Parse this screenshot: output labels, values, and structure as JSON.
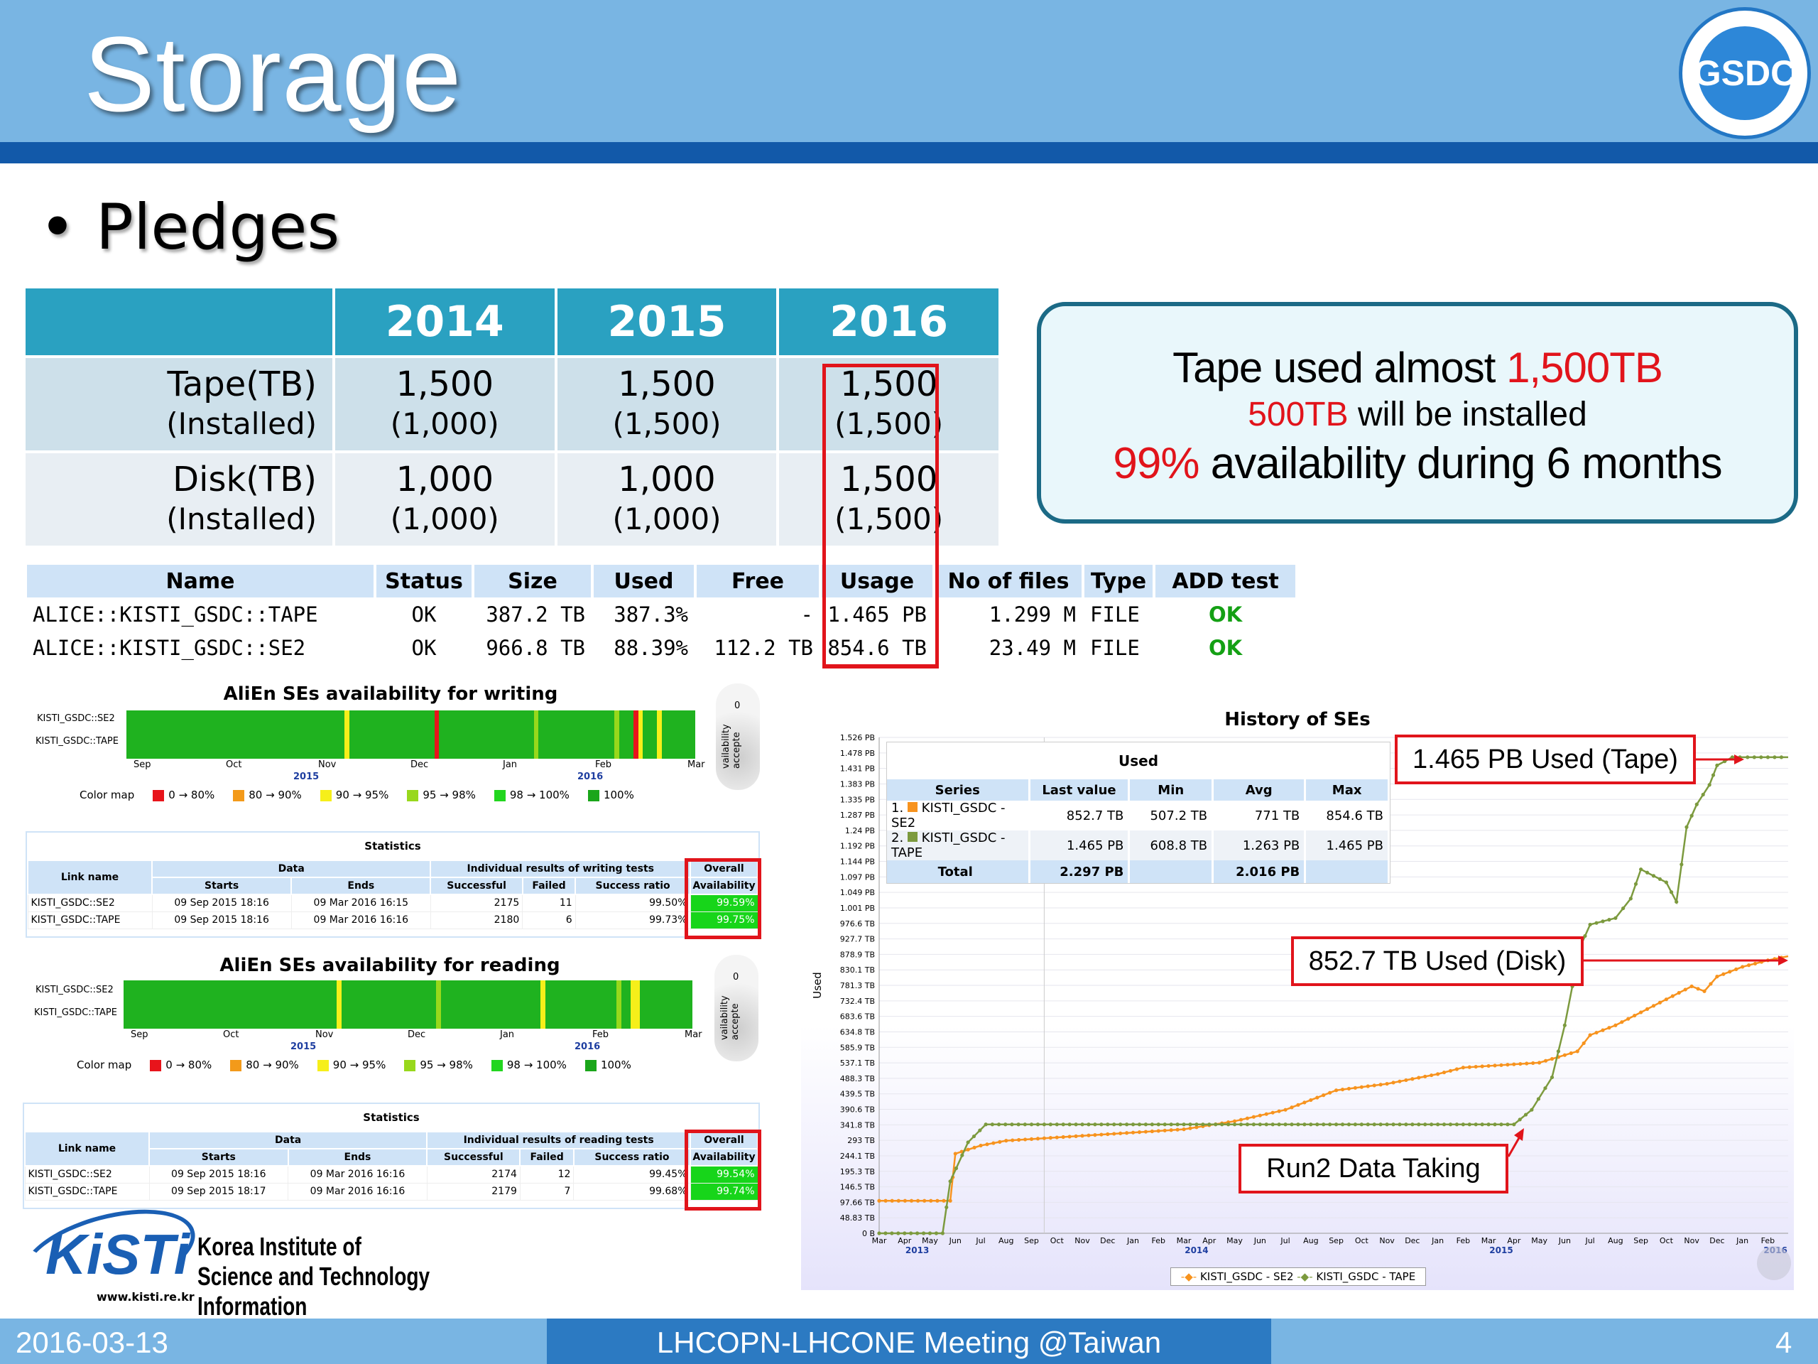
{
  "slide": {
    "title": "Storage",
    "bullet": "Pledges"
  },
  "pledges": {
    "headers": [
      "",
      "2014",
      "2015",
      "2016"
    ],
    "rows": [
      {
        "label": "Tape(TB)",
        "label_sub": "(Installed)",
        "values": [
          "1,500",
          "1,500",
          "1,500"
        ],
        "installed": [
          "(1,000)",
          "(1,500)",
          "(1,500)"
        ]
      },
      {
        "label": "Disk(TB)",
        "label_sub": "(Installed)",
        "values": [
          "1,000",
          "1,000",
          "1,500"
        ],
        "installed": [
          "(1,000)",
          "(1,000)",
          "(1,500)"
        ]
      }
    ]
  },
  "callout": {
    "line1_a": "Tape used almost ",
    "line1_b": "1,500TB",
    "line2_a": "500TB",
    "line2_b": " will be installed",
    "line3_a": "99%",
    "line3_b": " availability during 6 months"
  },
  "se_table": {
    "headers": [
      "Name",
      "Status",
      "Size",
      "Used",
      "Free",
      "Usage",
      "No of files",
      "Type",
      "ADD test"
    ],
    "rows": [
      [
        "ALICE::KISTI_GSDC::TAPE",
        "OK",
        "387.2 TB",
        "387.3%",
        "-",
        "1.465 PB",
        "1.299 M",
        "FILE",
        "OK"
      ],
      [
        "ALICE::KISTI_GSDC::SE2",
        "OK",
        "966.8 TB",
        "88.39%",
        "112.2 TB",
        "854.6 TB",
        "23.49 M",
        "FILE",
        "OK"
      ]
    ]
  },
  "writing": {
    "title": "AliEn SEs availability for writing",
    "rows": [
      "KISTI_GSDC::SE2",
      "KISTI_GSDC::TAPE"
    ],
    "months": [
      "Sep",
      "Oct",
      "Nov",
      "Dec",
      "Jan",
      "Feb",
      "Mar"
    ],
    "years": [
      "2015",
      "2016"
    ],
    "side_label": "vailability accepte",
    "side_value": "0",
    "colormap_label": "Color map",
    "colormap": [
      {
        "label": "0 → 80%",
        "color": "#e8141b"
      },
      {
        "label": "80 → 90%",
        "color": "#f39a1a"
      },
      {
        "label": "90 → 95%",
        "color": "#f6ef1a"
      },
      {
        "label": "95 → 98%",
        "color": "#98d81c"
      },
      {
        "label": "98 → 100%",
        "color": "#22d61f"
      },
      {
        "label": "100%",
        "color": "#1aa61a"
      }
    ],
    "stats": {
      "title": "Statistics",
      "h_link": "Link name",
      "h_data": "Data",
      "h_results": "Individual results of writing tests",
      "h_overall": "Overall",
      "h_starts": "Starts",
      "h_ends": "Ends",
      "h_success": "Successful",
      "h_failed": "Failed",
      "h_ratio": "Success ratio",
      "h_avail": "Availability",
      "rows": [
        [
          "KISTI_GSDC::SE2",
          "09 Sep 2015 18:16",
          "09 Mar 2016 16:15",
          "2175",
          "11",
          "99.50%",
          "99.59%"
        ],
        [
          "KISTI_GSDC::TAPE",
          "09 Sep 2015 18:16",
          "09 Mar 2016 16:16",
          "2180",
          "6",
          "99.73%",
          "99.75%"
        ]
      ]
    }
  },
  "reading": {
    "title": "AliEn SEs availability for reading",
    "rows": [
      "KISTI_GSDC::SE2",
      "KISTI_GSDC::TAPE"
    ],
    "months": [
      "Sep",
      "Oct",
      "Nov",
      "Dec",
      "Jan",
      "Feb",
      "Mar"
    ],
    "years": [
      "2015",
      "2016"
    ],
    "side_label": "vailability accepte",
    "side_value": "0",
    "colormap_label": "Color map",
    "stats": {
      "title": "Statistics",
      "h_link": "Link name",
      "h_data": "Data",
      "h_results": "Individual results of reading tests",
      "h_overall": "Overall",
      "h_starts": "Starts",
      "h_ends": "Ends",
      "h_success": "Successful",
      "h_failed": "Failed",
      "h_ratio": "Success ratio",
      "h_avail": "Availability",
      "rows": [
        [
          "KISTI_GSDC::SE2",
          "09 Sep 2015 18:16",
          "09 Mar 2016 16:16",
          "2174",
          "12",
          "99.45%",
          "99.54%"
        ],
        [
          "KISTI_GSDC::TAPE",
          "09 Sep 2015 18:17",
          "09 Mar 2016 16:16",
          "2179",
          "7",
          "99.68%",
          "99.74%"
        ]
      ]
    }
  },
  "history": {
    "title": "History of SEs",
    "ylabel": "Used",
    "used_table": {
      "title": "Used",
      "headers": [
        "Series",
        "Last value",
        "Min",
        "Avg",
        "Max"
      ],
      "rows": [
        [
          "1.",
          "KISTI_GSDC - SE2",
          "852.7 TB",
          "507.2 TB",
          "771 TB",
          "854.6 TB"
        ],
        [
          "2.",
          "KISTI_GSDC - TAPE",
          "1.465 PB",
          "608.8 TB",
          "1.263 PB",
          "1.465 PB"
        ]
      ],
      "total": [
        "Total",
        "2.297 PB",
        "",
        "2.016 PB",
        ""
      ]
    },
    "callouts": {
      "tape": "1.465 PB Used (Tape)",
      "disk": "852.7 TB Used (Disk)",
      "run2": "Run2 Data Taking"
    },
    "legend": [
      "KISTI_GSDC - SE2",
      "KISTI_GSDC - TAPE"
    ],
    "colors": {
      "se2": "#f7931e",
      "tape": "#7c9a3e"
    }
  },
  "chart_data": {
    "type": "line",
    "title": "History of SEs",
    "ylabel": "Used",
    "y_ticks": [
      "1.526 PB",
      "1.478 PB",
      "1.431 PB",
      "1.383 PB",
      "1.335 PB",
      "1.287 PB",
      "1.24 PB",
      "1.192 PB",
      "1.144 PB",
      "1.097 PB",
      "1.049 PB",
      "1.001 PB",
      "976.6 TB",
      "927.7 TB",
      "878.9 TB",
      "830.1 TB",
      "781.3 TB",
      "732.4 TB",
      "683.6 TB",
      "634.8 TB",
      "585.9 TB",
      "537.1 TB",
      "488.3 TB",
      "439.5 TB",
      "390.6 TB",
      "341.8 TB",
      "293 TB",
      "244.1 TB",
      "195.3 TB",
      "146.5 TB",
      "97.66 TB",
      "48.83 TB",
      "0 B"
    ],
    "x_ticks": [
      "Mar",
      "Apr",
      "May",
      "Jun",
      "Jul",
      "Aug",
      "Sep",
      "Oct",
      "Nov",
      "Dec",
      "Jan",
      "Feb",
      "Mar",
      "Apr",
      "May",
      "Jun",
      "Jul",
      "Aug",
      "Sep",
      "Oct",
      "Nov",
      "Dec",
      "Jan",
      "Feb",
      "Mar",
      "Apr",
      "May",
      "Jun",
      "Jul",
      "Aug",
      "Sep",
      "Oct",
      "Nov",
      "Dec",
      "Jan",
      "Feb"
    ],
    "x_years": [
      "2013",
      "2014",
      "2015",
      "2016"
    ],
    "y_range_tb": [
      0,
      1526
    ],
    "series": [
      {
        "name": "KISTI_GSDC - SE2",
        "x": [
          0,
          2.8,
          3,
          4,
          5,
          6,
          8,
          10,
          12,
          14,
          16,
          17,
          18,
          20,
          22,
          23,
          24,
          26,
          27.5,
          28,
          29,
          30,
          31,
          32,
          32.5,
          33,
          34,
          35,
          35.8
        ],
        "values": [
          100,
          100,
          245,
          270,
          285,
          290,
          300,
          310,
          320,
          345,
          380,
          410,
          440,
          460,
          490,
          510,
          515,
          525,
          560,
          610,
          640,
          680,
          720,
          760,
          745,
          790,
          820,
          840,
          852.7
        ]
      },
      {
        "name": "KISTI_GSDC - TAPE",
        "x": [
          0,
          2.5,
          2.8,
          3.5,
          4.2,
          6,
          10,
          15,
          18,
          20,
          25,
          25.7,
          26.5,
          27,
          27.6,
          28,
          29,
          29.6,
          30,
          31,
          31.4,
          31.8,
          32.2,
          32.7,
          33,
          33.6,
          34.2,
          35,
          35.8
        ],
        "values": [
          0,
          0,
          160,
          280,
          335,
          335,
          335,
          335,
          335,
          335,
          335,
          380,
          480,
          640,
          880,
          950,
          970,
          1030,
          1120,
          1080,
          1020,
          1250,
          1320,
          1380,
          1440,
          1465,
          1465,
          1465,
          1465
        ]
      }
    ]
  },
  "kisti": {
    "logo_text": "KiSTi",
    "name_line1": "Korea Institute of",
    "name_line2": "Science and Technology Information",
    "url": "www.kisti.re.kr"
  },
  "footer": {
    "date": "2016-03-13",
    "meeting": "LHCOPN-LHCONE Meeting @Taiwan",
    "page": "4"
  }
}
